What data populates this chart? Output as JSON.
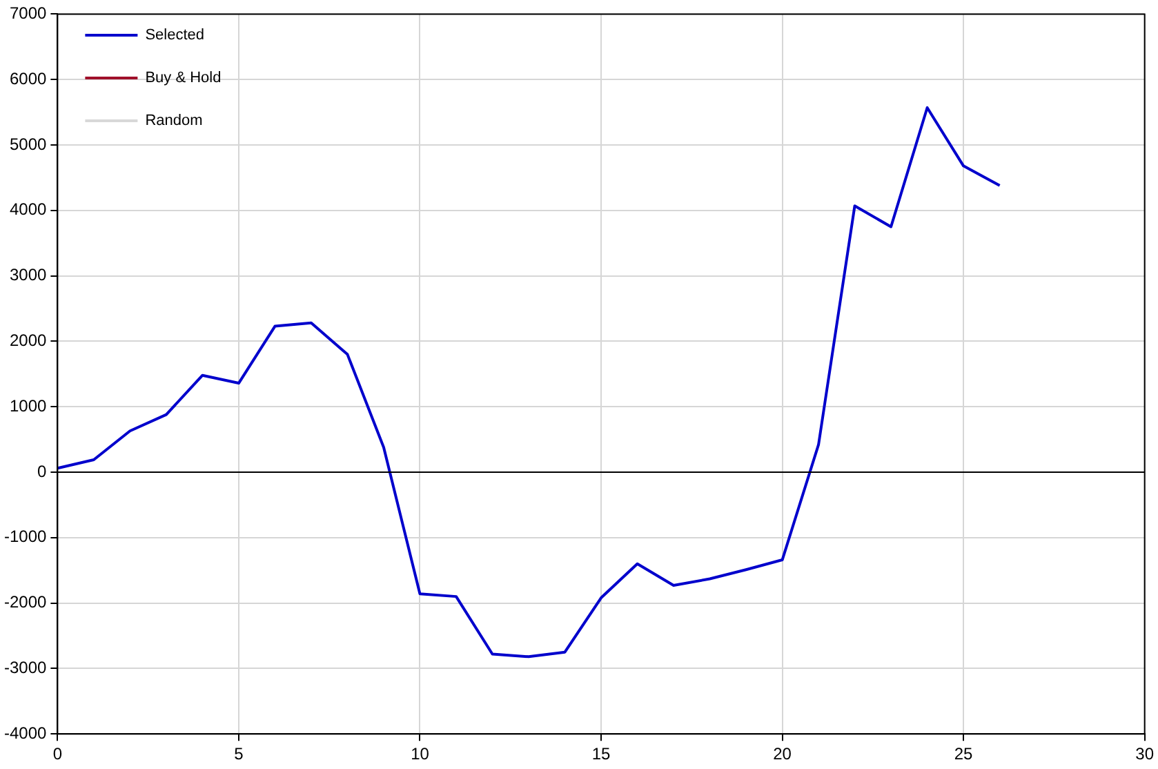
{
  "chart_data": {
    "type": "line",
    "x": [
      0,
      1,
      2,
      3,
      4,
      5,
      6,
      7,
      8,
      9,
      10,
      11,
      12,
      13,
      14,
      15,
      16,
      17,
      18,
      19,
      20,
      21,
      22,
      23,
      24,
      25,
      26
    ],
    "series": [
      {
        "name": "Selected",
        "color": "#0000cc",
        "values": [
          60,
          190,
          630,
          880,
          1480,
          1360,
          2230,
          2280,
          1800,
          380,
          -1860,
          -1900,
          -2780,
          -2820,
          -2750,
          -1920,
          -1400,
          -1730,
          -1630,
          -1490,
          -1340,
          420,
          4070,
          3750,
          5570,
          4680,
          4380
        ]
      },
      {
        "name": "Buy & Hold",
        "color": "#a0102a",
        "values": [
          null,
          null,
          null,
          null,
          null,
          null,
          null,
          null,
          null,
          null,
          null,
          null,
          null,
          null,
          null,
          null,
          null,
          null,
          null,
          null,
          null,
          null,
          null,
          null,
          null,
          null,
          null
        ]
      },
      {
        "name": "Random",
        "color": "#d8d8d8",
        "values": [
          null,
          null,
          null,
          null,
          null,
          null,
          null,
          null,
          null,
          null,
          null,
          null,
          null,
          null,
          null,
          null,
          null,
          null,
          null,
          null,
          null,
          null,
          null,
          null,
          null,
          null,
          null
        ]
      }
    ],
    "xlim": [
      0,
      30
    ],
    "xticks": [
      0,
      5,
      10,
      15,
      20,
      25,
      30
    ],
    "ylim": [
      -4000,
      7000
    ],
    "yticks": [
      -4000,
      -3000,
      -2000,
      -1000,
      0,
      1000,
      2000,
      3000,
      4000,
      5000,
      6000,
      7000
    ],
    "ref_lines": [
      {
        "axis": "y",
        "value": 0,
        "color": "#000000"
      }
    ],
    "grid": true,
    "legend": "top left",
    "marker": "none",
    "line_style": "solid"
  }
}
